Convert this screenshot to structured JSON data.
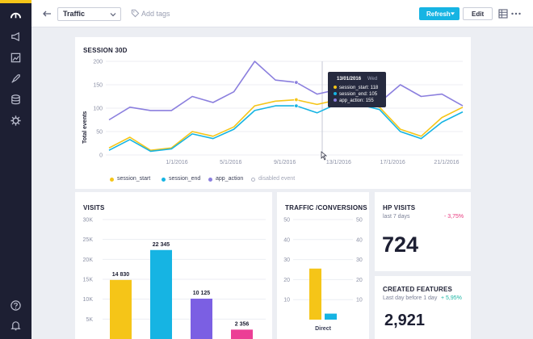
{
  "topbar": {
    "report_name": "Traffic",
    "add_tags": "Add tags",
    "refresh_label": "Refresh",
    "edit_label": "Edit"
  },
  "sidebar": {
    "icons": [
      "speedometer-icon",
      "megaphone-icon",
      "image-icon",
      "rocket-icon",
      "database-icon",
      "gear-icon",
      "help-icon",
      "bell-icon"
    ]
  },
  "colors": {
    "sidebar": "#1d1f33",
    "accent": "#16b4e3",
    "yellow": "#f5c518",
    "cyan": "#16b4e3",
    "purple": "#8b7fde",
    "violet": "#7b5fe3",
    "pink": "#ec3e95",
    "negative": "#e8377d",
    "positive": "#1db6a4"
  },
  "session_card": {
    "title": "SESSION 30D",
    "legend": [
      "session_start",
      "session_end",
      "app_action",
      "disabled event"
    ],
    "tooltip": {
      "date": "13/01/2016",
      "day": "Wed",
      "rows": [
        "session_start: 118",
        "session_end: 105",
        "app_action: 155"
      ]
    }
  },
  "visits_card": {
    "title": "VISITS"
  },
  "traffic_card": {
    "title": "TRAFFIC /CONVERSIONS"
  },
  "hp_visits": {
    "title": "HP VISITS",
    "subtitle": "last 7 days",
    "change": "- 3,75%",
    "value": "724"
  },
  "created_features": {
    "title": "CREATED FEATURES",
    "subtitle": "Last day before 1 day",
    "change": "+ 5,95%",
    "value": "2,921"
  },
  "chart_data": [
    {
      "type": "line",
      "title": "SESSION 30D",
      "ylabel": "Total events",
      "ylim": [
        0,
        200
      ],
      "yticks": [
        0,
        50,
        100,
        150,
        200
      ],
      "x_tick_labels": [
        "1/1/2016",
        "5/1/2016",
        "9/1/2016",
        "13/1/2016",
        "17/1/2016",
        "21/1/2016"
      ],
      "x_tick_index": [
        2,
        6,
        10,
        14,
        18,
        22
      ],
      "grid": true,
      "legend": "bottom",
      "series": [
        {
          "name": "session_start",
          "color": "#f5c518",
          "values": [
            15,
            38,
            10,
            15,
            50,
            40,
            60,
            105,
            115,
            118,
            108,
            118,
            115,
            102,
            55,
            40,
            80,
            102
          ]
        },
        {
          "name": "session_end",
          "color": "#16b4e3",
          "values": [
            10,
            33,
            8,
            13,
            45,
            35,
            55,
            95,
            105,
            105,
            90,
            110,
            108,
            97,
            50,
            35,
            70,
            92
          ]
        },
        {
          "name": "app_action",
          "color": "#8b7fde",
          "values": [
            75,
            102,
            95,
            95,
            125,
            112,
            135,
            200,
            160,
            155,
            130,
            140,
            115,
            112,
            150,
            125,
            130,
            105
          ]
        }
      ]
    },
    {
      "type": "bar",
      "title": "VISITS",
      "ylim": [
        0,
        30000
      ],
      "yticks_labels": [
        "30K",
        "25K",
        "20K",
        "15K",
        "10K",
        "5K"
      ],
      "yticks": [
        30000,
        25000,
        20000,
        15000,
        10000,
        5000
      ],
      "values": [
        14830,
        22345,
        10125,
        2356
      ],
      "labels": [
        "14 830",
        "22 345",
        "10 125",
        "2 356"
      ],
      "colors": [
        "#f5c518",
        "#16b4e3",
        "#7b5fe3",
        "#ec3e95"
      ]
    },
    {
      "type": "bar",
      "title": "TRAFFIC /CONVERSIONS",
      "categories": [
        "Direct"
      ],
      "left_ticks": [
        50,
        40,
        30,
        20,
        10
      ],
      "right_ticks": [
        50,
        40,
        30,
        20,
        10
      ],
      "ylim": [
        0,
        50
      ],
      "series": [
        {
          "color": "#f5c518",
          "values": [
            25.5
          ]
        },
        {
          "color": "#16b4e3",
          "values": [
            3
          ]
        }
      ]
    }
  ]
}
